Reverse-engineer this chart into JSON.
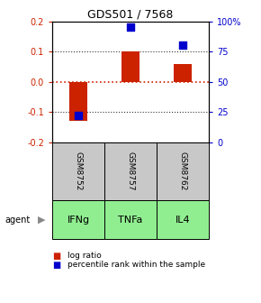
{
  "title": "GDS501 / 7568",
  "samples": [
    "GSM8752",
    "GSM8757",
    "GSM8762"
  ],
  "agents": [
    "IFNg",
    "TNFa",
    "IL4"
  ],
  "log_ratios": [
    -0.13,
    0.1,
    0.06
  ],
  "percentile_ranks": [
    22,
    95,
    80
  ],
  "bar_color": "#CC2200",
  "dot_color": "#0000CC",
  "ylim_left": [
    -0.2,
    0.2
  ],
  "ylim_right": [
    0,
    100
  ],
  "yticks_left": [
    -0.2,
    -0.1,
    0.0,
    0.1,
    0.2
  ],
  "yticks_right": [
    0,
    25,
    50,
    75,
    100
  ],
  "ytick_labels_right": [
    "0",
    "25",
    "50",
    "75",
    "100%"
  ],
  "hline_color": "#CC2200",
  "gridline_color": "#333333",
  "sample_bg": "#C8C8C8",
  "agent_bg": "#90EE90",
  "agent_arrow_label": "agent",
  "legend_log_ratio": "log ratio",
  "legend_percentile": "percentile rank within the sample",
  "bar_width": 0.35,
  "dot_size": 40
}
